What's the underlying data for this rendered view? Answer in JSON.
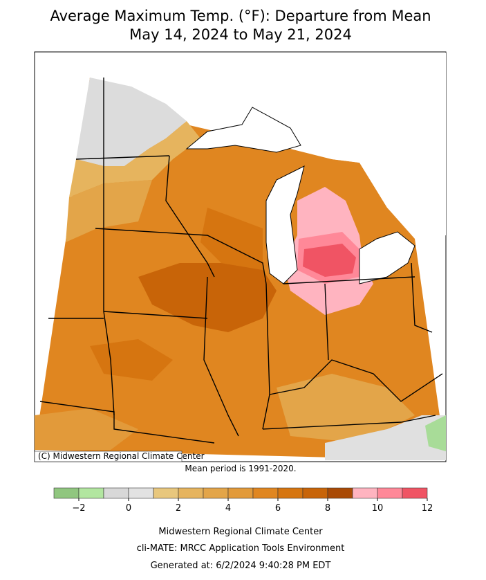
{
  "header": {
    "title": "Average Maximum Temp. (°F): Departure from Mean",
    "subtitle": "May 14, 2024 to May 21, 2024"
  },
  "map": {
    "credit": "(C) Midwestern Regional Climate Center",
    "note": "Mean period is 1991-2020."
  },
  "colorbar": {
    "bins": [
      -3,
      -2,
      -1,
      0,
      1,
      2,
      3,
      4,
      5,
      6,
      7,
      8,
      9,
      10,
      11,
      12
    ],
    "colors": [
      "#90c67f",
      "#b2e6a0",
      "#d8d8d8",
      "#e2e2e2",
      "#e8c77d",
      "#e6b45e",
      "#e3a549",
      "#e29a3a",
      "#e08620",
      "#d67510",
      "#c86408",
      "#a94a05",
      "#ffb4c0",
      "#ff8898",
      "#f05464"
    ],
    "ticks": [
      {
        "value": -2,
        "label": "−2"
      },
      0,
      2,
      4,
      6,
      8,
      10,
      12
    ]
  },
  "footer": {
    "line1": "Midwestern Regional Climate Center",
    "line2": "cli-MATE: MRCC Application Tools Environment",
    "line3": "Generated at: 6/2/2024 9:40:28 PM EDT"
  }
}
